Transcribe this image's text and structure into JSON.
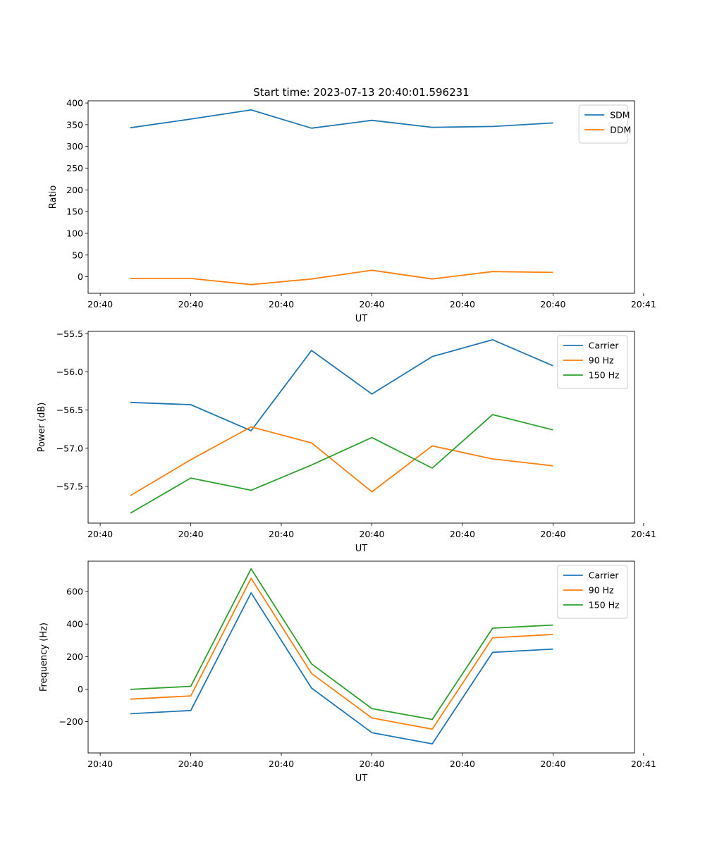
{
  "figure": {
    "title": "Start time: 2023-07-13 20:40:01.596231"
  },
  "chart_data": [
    {
      "type": "line",
      "title": "Start time: 2023-07-13 20:40:01.596231",
      "xlabel": "UT",
      "ylabel": "Ratio",
      "x_index": [
        0,
        1,
        2,
        3,
        4,
        5,
        6,
        7
      ],
      "x_ticklabels": [
        "20:40",
        "20:40",
        "20:40",
        "20:40",
        "20:40",
        "20:40",
        "20:41"
      ],
      "xlim": [
        -0.7,
        8.35
      ],
      "ylim": [
        -38,
        405
      ],
      "yticks": [
        0,
        50,
        100,
        150,
        200,
        250,
        300,
        350,
        400
      ],
      "ytick_labels": [
        "0",
        "50",
        "100",
        "150",
        "200",
        "250",
        "300",
        "350",
        "400"
      ],
      "legend_position": "top-right",
      "series": [
        {
          "name": "SDM",
          "color": "#1f77b4",
          "values": [
            343,
            363,
            384,
            342,
            360,
            344,
            346,
            354
          ]
        },
        {
          "name": "DDM",
          "color": "#ff7f0e",
          "values": [
            -4,
            -4,
            -18,
            -5,
            15,
            -5,
            12,
            10
          ]
        }
      ]
    },
    {
      "type": "line",
      "xlabel": "UT",
      "ylabel": "Power (dB)",
      "x_index": [
        0,
        1,
        2,
        3,
        4,
        5,
        6,
        7
      ],
      "x_ticklabels": [
        "20:40",
        "20:40",
        "20:40",
        "20:40",
        "20:40",
        "20:40",
        "20:41"
      ],
      "xlim": [
        -0.7,
        8.35
      ],
      "ylim": [
        -57.98,
        -55.47
      ],
      "yticks": [
        -57.5,
        -57.0,
        -56.5,
        -56.0,
        -55.5
      ],
      "ytick_labels": [
        "−57.5",
        "−57.0",
        "−56.5",
        "−56.0",
        "−55.5"
      ],
      "legend_position": "top-right",
      "series": [
        {
          "name": "Carrier",
          "color": "#1f77b4",
          "values": [
            -56.4,
            -56.43,
            -56.77,
            -55.72,
            -56.29,
            -55.8,
            -55.58,
            -55.92
          ]
        },
        {
          "name": "90 Hz",
          "color": "#ff7f0e",
          "values": [
            -57.62,
            -57.15,
            -56.72,
            -56.93,
            -57.57,
            -56.97,
            -57.14,
            -57.23
          ]
        },
        {
          "name": "150 Hz",
          "color": "#2ca02c",
          "values": [
            -57.85,
            -57.39,
            -57.55,
            -57.22,
            -56.86,
            -57.26,
            -56.56,
            -56.76
          ]
        }
      ]
    },
    {
      "type": "line",
      "xlabel": "UT",
      "ylabel": "Frequency (Hz)",
      "x_index": [
        0,
        1,
        2,
        3,
        4,
        5,
        6,
        7
      ],
      "x_ticklabels": [
        "20:40",
        "20:40",
        "20:40",
        "20:40",
        "20:40",
        "20:40",
        "20:41"
      ],
      "xlim": [
        -0.7,
        8.35
      ],
      "ylim": [
        -393,
        787
      ],
      "yticks": [
        -200,
        0,
        200,
        400,
        600
      ],
      "ytick_labels": [
        "−200",
        "0",
        "200",
        "400",
        "600"
      ],
      "legend_position": "top-right",
      "series": [
        {
          "name": "Carrier",
          "color": "#1f77b4",
          "values": [
            -152,
            -132,
            592,
            6,
            -268,
            -337,
            226,
            246
          ]
        },
        {
          "name": "90 Hz",
          "color": "#ff7f0e",
          "values": [
            -62,
            -42,
            682,
            96,
            -178,
            -247,
            316,
            336
          ]
        },
        {
          "name": "150 Hz",
          "color": "#2ca02c",
          "values": [
            -2,
            17,
            740,
            155,
            -120,
            -187,
            375,
            394
          ]
        }
      ]
    }
  ]
}
